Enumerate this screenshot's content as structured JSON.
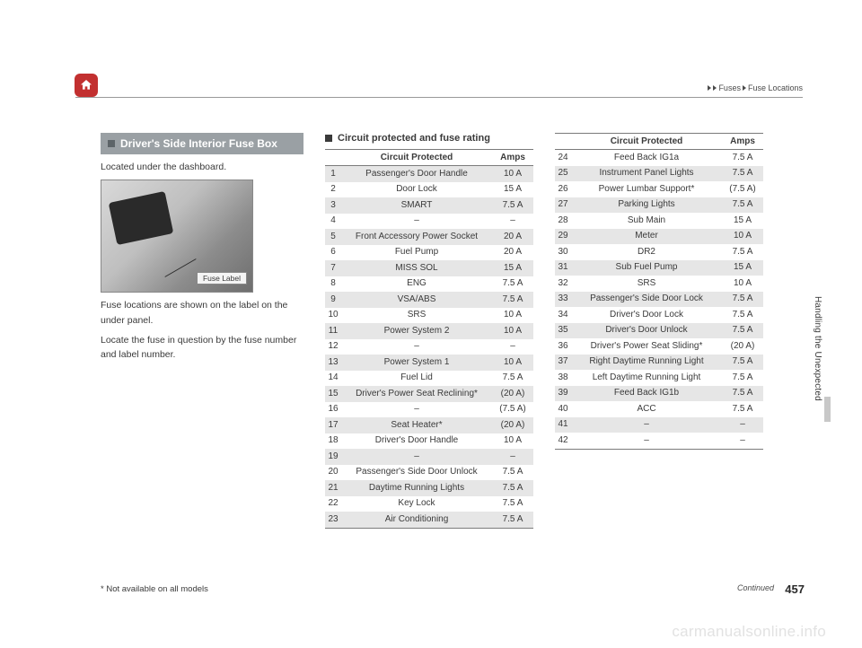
{
  "header": {
    "breadcrumb1": "Fuses",
    "breadcrumb2": "Fuse Locations"
  },
  "sideTab": "Handling the Unexpected",
  "col1": {
    "heading": "Driver's Side Interior Fuse Box",
    "p1": "Located under the dashboard.",
    "fuseLabel": "Fuse Label",
    "p2": "Fuse locations are shown on the label on the under panel.",
    "p3": "Locate the fuse in question by the fuse number and label number."
  },
  "col2": {
    "subhead": "Circuit protected and fuse rating",
    "th_circuit": "Circuit Protected",
    "th_amps": "Amps",
    "rows": [
      {
        "n": "1",
        "c": "Passenger's Door Handle",
        "a": "10 A",
        "s": true
      },
      {
        "n": "2",
        "c": "Door Lock",
        "a": "15 A",
        "s": false
      },
      {
        "n": "3",
        "c": "SMART",
        "a": "7.5 A",
        "s": true
      },
      {
        "n": "4",
        "c": "–",
        "a": "–",
        "s": false
      },
      {
        "n": "5",
        "c": "Front Accessory Power Socket",
        "a": "20 A",
        "s": true
      },
      {
        "n": "6",
        "c": "Fuel Pump",
        "a": "20 A",
        "s": false
      },
      {
        "n": "7",
        "c": "MISS SOL",
        "a": "15 A",
        "s": true
      },
      {
        "n": "8",
        "c": "ENG",
        "a": "7.5 A",
        "s": false
      },
      {
        "n": "9",
        "c": "VSA/ABS",
        "a": "7.5 A",
        "s": true
      },
      {
        "n": "10",
        "c": "SRS",
        "a": "10 A",
        "s": false
      },
      {
        "n": "11",
        "c": "Power System 2",
        "a": "10 A",
        "s": true
      },
      {
        "n": "12",
        "c": "–",
        "a": "–",
        "s": false
      },
      {
        "n": "13",
        "c": "Power System 1",
        "a": "10 A",
        "s": true
      },
      {
        "n": "14",
        "c": "Fuel Lid",
        "a": "7.5 A",
        "s": false
      },
      {
        "n": "15",
        "c": "Driver's Power Seat Reclining*",
        "a": "(20 A)",
        "s": true
      },
      {
        "n": "16",
        "c": "–",
        "a": "(7.5 A)",
        "s": false
      },
      {
        "n": "17",
        "c": "Seat Heater*",
        "a": "(20 A)",
        "s": true
      },
      {
        "n": "18",
        "c": "Driver's Door Handle",
        "a": "10 A",
        "s": false
      },
      {
        "n": "19",
        "c": "–",
        "a": "–",
        "s": true
      },
      {
        "n": "20",
        "c": "Passenger's Side Door Unlock",
        "a": "7.5 A",
        "s": false
      },
      {
        "n": "21",
        "c": "Daytime Running Lights",
        "a": "7.5 A",
        "s": true
      },
      {
        "n": "22",
        "c": "Key Lock",
        "a": "7.5 A",
        "s": false
      },
      {
        "n": "23",
        "c": "Air Conditioning",
        "a": "7.5 A",
        "s": true
      }
    ]
  },
  "col3": {
    "th_circuit": "Circuit Protected",
    "th_amps": "Amps",
    "rows": [
      {
        "n": "24",
        "c": "Feed Back IG1a",
        "a": "7.5 A",
        "s": false
      },
      {
        "n": "25",
        "c": "Instrument Panel Lights",
        "a": "7.5 A",
        "s": true
      },
      {
        "n": "26",
        "c": "Power Lumbar Support*",
        "a": "(7.5 A)",
        "s": false
      },
      {
        "n": "27",
        "c": "Parking Lights",
        "a": "7.5 A",
        "s": true
      },
      {
        "n": "28",
        "c": "Sub Main",
        "a": "15 A",
        "s": false
      },
      {
        "n": "29",
        "c": "Meter",
        "a": "10 A",
        "s": true
      },
      {
        "n": "30",
        "c": "DR2",
        "a": "7.5 A",
        "s": false
      },
      {
        "n": "31",
        "c": "Sub Fuel Pump",
        "a": "15 A",
        "s": true
      },
      {
        "n": "32",
        "c": "SRS",
        "a": "10 A",
        "s": false
      },
      {
        "n": "33",
        "c": "Passenger's Side Door Lock",
        "a": "7.5 A",
        "s": true
      },
      {
        "n": "34",
        "c": "Driver's Door Lock",
        "a": "7.5 A",
        "s": false
      },
      {
        "n": "35",
        "c": "Driver's Door Unlock",
        "a": "7.5 A",
        "s": true
      },
      {
        "n": "36",
        "c": "Driver's Power Seat Sliding*",
        "a": "(20 A)",
        "s": false
      },
      {
        "n": "37",
        "c": "Right Daytime Running Light",
        "a": "7.5 A",
        "s": true
      },
      {
        "n": "38",
        "c": "Left Daytime Running Light",
        "a": "7.5 A",
        "s": false
      },
      {
        "n": "39",
        "c": "Feed Back IG1b",
        "a": "7.5 A",
        "s": true
      },
      {
        "n": "40",
        "c": "ACC",
        "a": "7.5 A",
        "s": false
      },
      {
        "n": "41",
        "c": "–",
        "a": "–",
        "s": true
      },
      {
        "n": "42",
        "c": "–",
        "a": "–",
        "s": false
      }
    ]
  },
  "footer": {
    "footnote": "* Not available on all models",
    "continued": "Continued",
    "page": "457",
    "watermark": "carmanualsonline.info"
  }
}
